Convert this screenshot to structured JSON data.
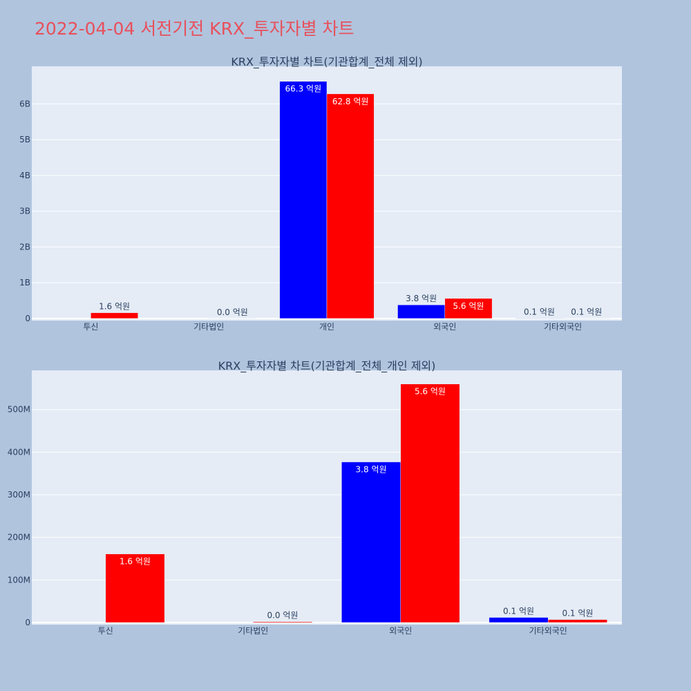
{
  "title": "2022-04-04 서전기전 KRX_투자자별 차트",
  "colors": {
    "series1": "#0000ff",
    "series2": "#ff0000",
    "title": "#e8505b",
    "plot_bg": "#e5ecf6",
    "page_bg": "#b0c4de"
  },
  "chart_data": [
    {
      "type": "bar",
      "title": "KRX_투자자별 차트(기관합계_전체 제외)",
      "categories": [
        "투신",
        "기타법인",
        "개인",
        "외국인",
        "기타외국인"
      ],
      "ylim": [
        -60000000,
        7050000000
      ],
      "yticks": [
        0,
        1000000000,
        2000000000,
        3000000000,
        4000000000,
        5000000000,
        6000000000
      ],
      "yticklabels": [
        "0",
        "1B",
        "2B",
        "3B",
        "4B",
        "5B",
        "6B"
      ],
      "grid": true,
      "series": [
        {
          "values": [
            0,
            0,
            6630000000,
            380000000,
            10000000
          ],
          "labels": [
            "",
            "",
            "66.3 억원",
            "3.8 억원",
            "0.1 억원"
          ]
        },
        {
          "values": [
            160000000,
            2000000,
            6280000000,
            560000000,
            7000000
          ],
          "labels": [
            "1.6 억원",
            "0.0 억원",
            "62.8 억원",
            "5.6 억원",
            "0.1 억원"
          ]
        }
      ]
    },
    {
      "type": "bar",
      "title": "KRX_투자자별 차트(기관합계_전체_개인 제외)",
      "categories": [
        "투신",
        "기타법인",
        "외국인",
        "기타외국인"
      ],
      "ylim": [
        -5000000,
        592000000
      ],
      "yticks": [
        0,
        100000000,
        200000000,
        300000000,
        400000000,
        500000000
      ],
      "yticklabels": [
        "0",
        "100M",
        "200M",
        "300M",
        "400M",
        "500M"
      ],
      "grid": true,
      "series": [
        {
          "values": [
            0,
            0,
            377000000,
            12000000
          ],
          "labels": [
            "",
            "",
            "3.8 억원",
            "0.1 억원"
          ]
        },
        {
          "values": [
            161000000,
            2000000,
            560000000,
            7000000
          ],
          "labels": [
            "1.6 억원",
            "0.0 억원",
            "5.6 억원",
            "0.1 억원"
          ]
        }
      ]
    }
  ]
}
